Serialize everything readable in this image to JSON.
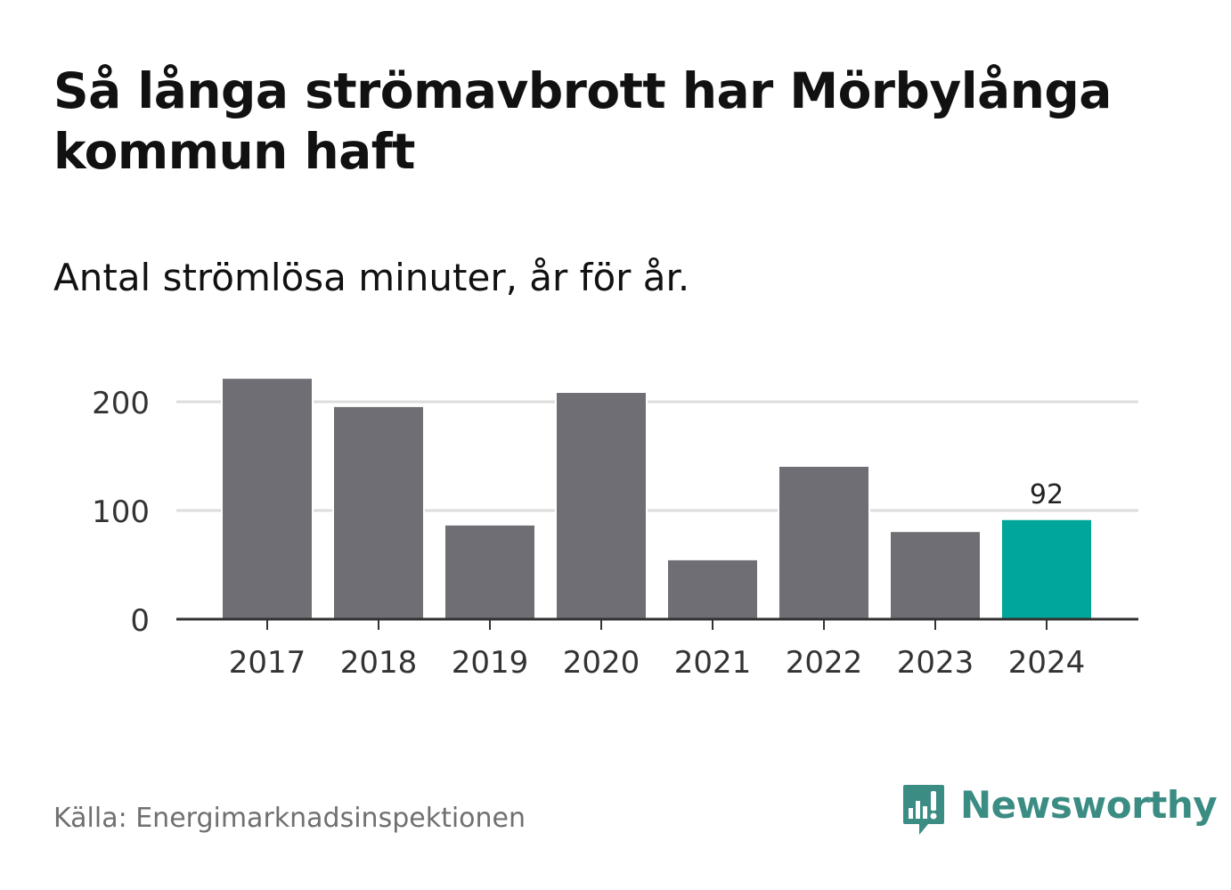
{
  "header": {
    "title": "Så långa strömavbrott har Mörbylånga kommun haft",
    "subtitle": "Antal strömlösa minuter, år för år."
  },
  "footer": {
    "source": "Källa: Energimarknadsinspektionen",
    "brand": "Newsworthy"
  },
  "colors": {
    "bar": "#6f6e75",
    "highlight": "#00a699",
    "grid": "#dddddd",
    "axis": "#333333",
    "brand": "#3b8c83"
  },
  "chart_data": {
    "type": "bar",
    "title": "Så långa strömavbrott har Mörbylånga kommun haft",
    "subtitle": "Antal strömlösa minuter, år för år.",
    "xlabel": "",
    "ylabel": "",
    "categories": [
      "2017",
      "2018",
      "2019",
      "2020",
      "2021",
      "2022",
      "2023",
      "2024"
    ],
    "values": [
      222,
      196,
      87,
      209,
      55,
      141,
      81,
      92
    ],
    "highlight_index": 7,
    "data_labels": [
      {
        "index": 7,
        "label": "92"
      }
    ],
    "ylim": [
      0,
      230
    ],
    "yticks": [
      0,
      100,
      200
    ],
    "grid": true,
    "legend": "none"
  }
}
